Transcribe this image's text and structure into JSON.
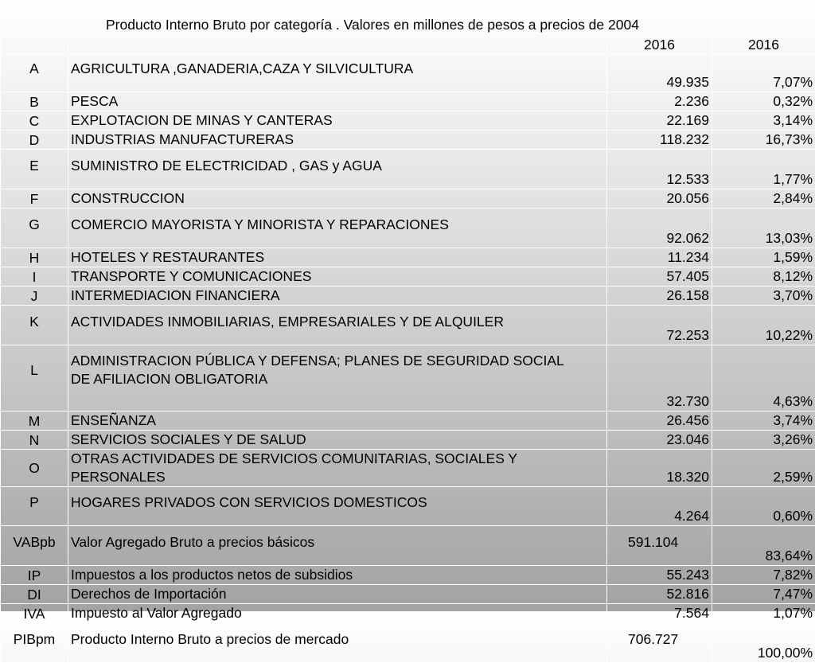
{
  "title": "Producto Interno Bruto por categoría . Valores en millones de pesos a precios de 2004",
  "headers": {
    "col3": "2016",
    "col4": "2016"
  },
  "rows": [
    {
      "code": "A",
      "desc": "AGRICULTURA ,GANADERIA,CAZA Y SILVICULTURA",
      "value": "49.935",
      "pct": "7,07%"
    },
    {
      "code": "B",
      "desc": "PESCA",
      "value": "2.236",
      "pct": "0,32%"
    },
    {
      "code": "C",
      "desc": "EXPLOTACION DE MINAS Y CANTERAS",
      "value": "22.169",
      "pct": "3,14%"
    },
    {
      "code": "D",
      "desc": "INDUSTRIAS MANUFACTURERAS",
      "value": "118.232",
      "pct": "16,73%"
    },
    {
      "code": "E",
      "desc": "SUMINISTRO DE ELECTRICIDAD , GAS y AGUA",
      "value": "12.533",
      "pct": "1,77%"
    },
    {
      "code": "F",
      "desc": "CONSTRUCCION",
      "value": "20.056",
      "pct": "2,84%"
    },
    {
      "code": "G",
      "desc": "COMERCIO MAYORISTA Y MINORISTA Y REPARACIONES",
      "value": "92.062",
      "pct": "13,03%"
    },
    {
      "code": "H",
      "desc": "HOTELES Y RESTAURANTES",
      "value": "11.234",
      "pct": "1,59%"
    },
    {
      "code": "I",
      "desc": "TRANSPORTE Y COMUNICACIONES",
      "value": "57.405",
      "pct": "8,12%"
    },
    {
      "code": "J",
      "desc": "INTERMEDIACION FINANCIERA",
      "value": "26.158",
      "pct": "3,70%"
    },
    {
      "code": "K",
      "desc": "ACTIVIDADES INMOBILIARIAS, EMPRESARIALES Y DE ALQUILER",
      "value": "72.253",
      "pct": "10,22%"
    },
    {
      "code": "L",
      "desc": "ADMINISTRACION PÚBLICA Y DEFENSA; PLANES DE SEGURIDAD SOCIAL DE AFILIACION OBLIGATORIA",
      "value": "32.730",
      "pct": "4,63%"
    },
    {
      "code": "M",
      "desc": "ENSEÑANZA",
      "value": "26.456",
      "pct": "3,74%"
    },
    {
      "code": "N",
      "desc": "SERVICIOS SOCIALES Y DE SALUD",
      "value": "23.046",
      "pct": "3,26%"
    },
    {
      "code": "O",
      "desc": "OTRAS ACTIVIDADES DE SERVICIOS COMUNITARIAS, SOCIALES Y PERSONALES",
      "value": "18.320",
      "pct": "2,59%"
    },
    {
      "code": "P",
      "desc": "HOGARES PRIVADOS CON SERVICIOS DOMESTICOS",
      "value": "4.264",
      "pct": "0,60%"
    },
    {
      "code": "VABpb",
      "desc": "Valor Agregado Bruto a precios básicos",
      "value": "591.104",
      "pct": "83,64%"
    },
    {
      "code": "IP",
      "desc": "Impuestos a los productos netos de subsidios",
      "value": "55.243",
      "pct": "7,82%"
    },
    {
      "code": "DI",
      "desc": "Derechos de Importación",
      "value": "52.816",
      "pct": "7,47%"
    },
    {
      "code": "IVA",
      "desc": "Impuesto al Valor Agregado",
      "value": "7.564",
      "pct": "1,07%"
    },
    {
      "code": "PIBpm",
      "desc": "Producto Interno Bruto a precios de mercado",
      "value": "706.727",
      "pct": "100,00%"
    }
  ]
}
